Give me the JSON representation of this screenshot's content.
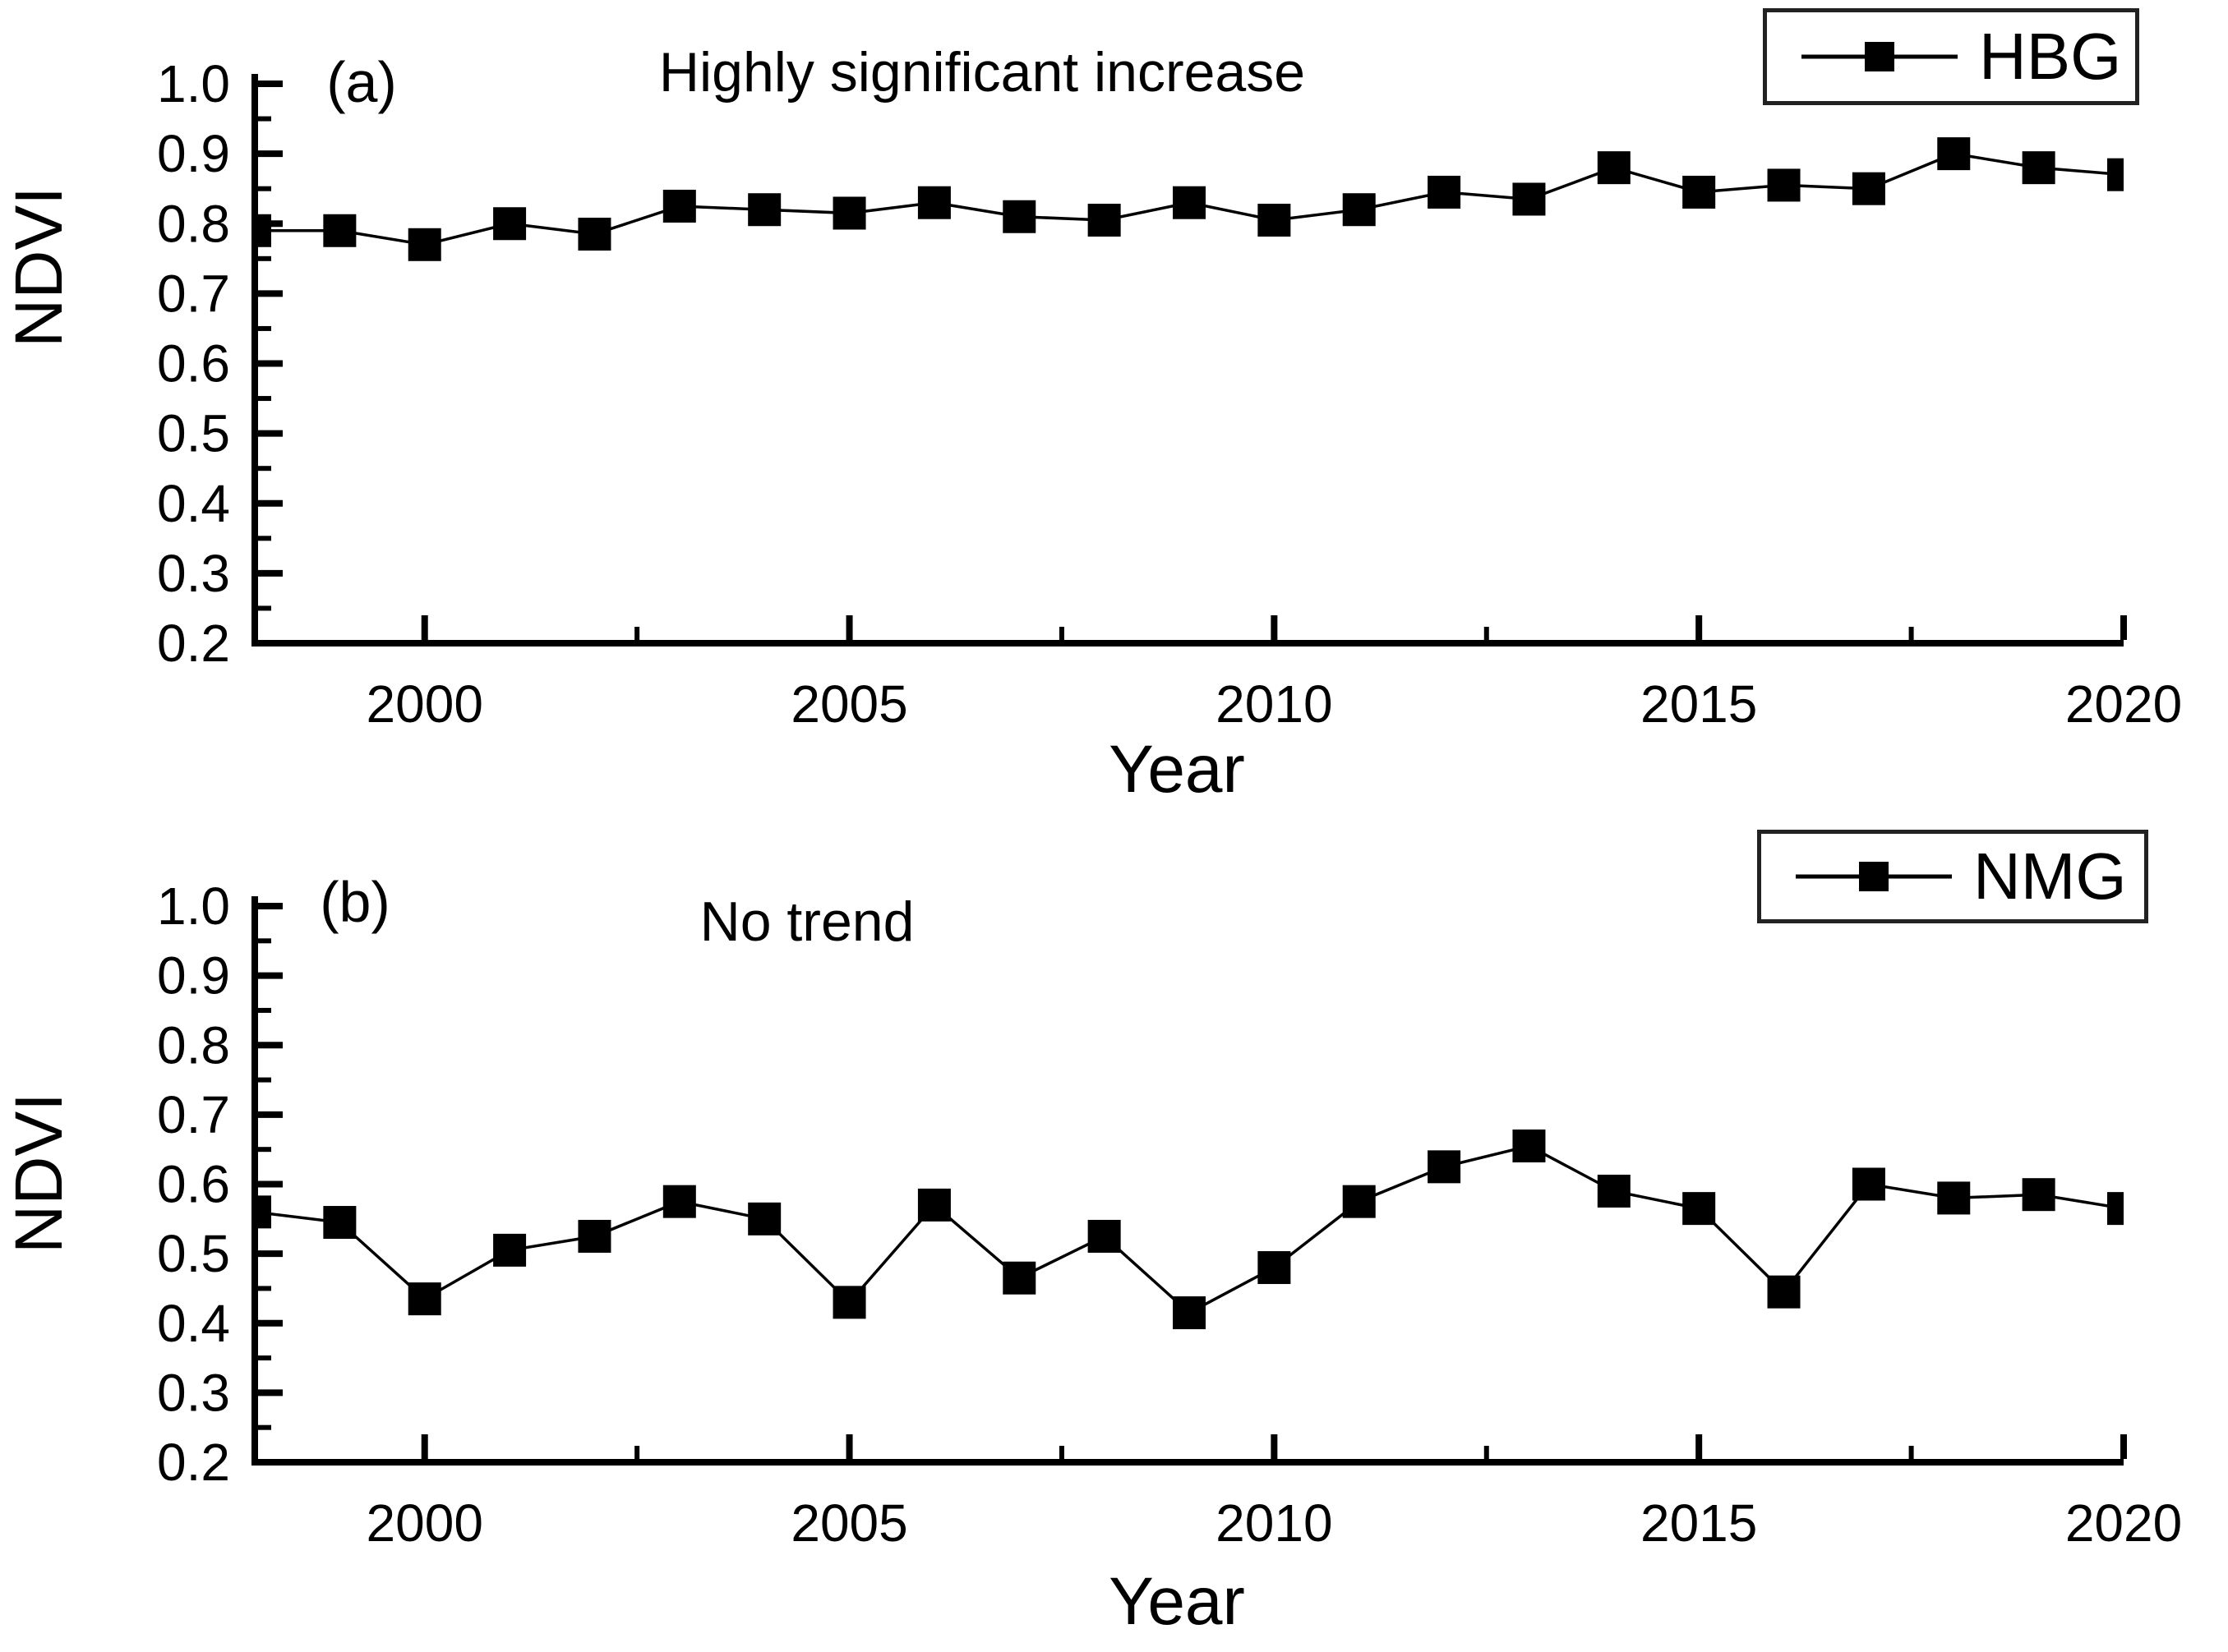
{
  "figure": {
    "background": "#ffffff",
    "series_color": "#000000",
    "axis_color": "#000000"
  },
  "chart_data": [
    {
      "type": "line",
      "panel_label": "(a)",
      "title": "Highly significant increase",
      "legend_label": "HBG",
      "xlabel": "Year",
      "ylabel": "NDVI",
      "marker": "filled-square",
      "grid": false,
      "legend_position": "top-right",
      "xlim": [
        1998,
        2020
      ],
      "ylim": [
        0.2,
        1.0
      ],
      "xticks": [
        2000,
        2005,
        2010,
        2015,
        2020
      ],
      "xticks_minor": [
        2002.5,
        2007.5,
        2012.5,
        2017.5
      ],
      "yticks": [
        0.2,
        0.3,
        0.4,
        0.5,
        0.6,
        0.7,
        0.8,
        0.9,
        1.0
      ],
      "yticks_minor": [
        0.25,
        0.35,
        0.45,
        0.55,
        0.65,
        0.75,
        0.85,
        0.95
      ],
      "x": [
        1998,
        1999,
        2000,
        2001,
        2002,
        2003,
        2004,
        2005,
        2006,
        2007,
        2008,
        2009,
        2010,
        2011,
        2012,
        2013,
        2014,
        2015,
        2016,
        2017,
        2018,
        2019,
        2020
      ],
      "series": [
        {
          "name": "HBG",
          "values": [
            0.79,
            0.79,
            0.77,
            0.8,
            0.785,
            0.825,
            0.82,
            0.815,
            0.83,
            0.81,
            0.805,
            0.83,
            0.805,
            0.82,
            0.845,
            0.835,
            0.88,
            0.845,
            0.855,
            0.85,
            0.9,
            0.88,
            0.87
          ]
        }
      ]
    },
    {
      "type": "line",
      "panel_label": "(b)",
      "title": "No trend",
      "legend_label": "NMG",
      "xlabel": "Year",
      "ylabel": "NDVI",
      "marker": "filled-square",
      "grid": false,
      "legend_position": "top-right",
      "xlim": [
        1998,
        2020
      ],
      "ylim": [
        0.2,
        1.0
      ],
      "xticks": [
        2000,
        2005,
        2010,
        2015,
        2020
      ],
      "xticks_minor": [
        2002.5,
        2007.5,
        2012.5,
        2017.5
      ],
      "yticks": [
        0.2,
        0.3,
        0.4,
        0.5,
        0.6,
        0.7,
        0.8,
        0.9,
        1.0
      ],
      "yticks_minor": [
        0.25,
        0.35,
        0.45,
        0.55,
        0.65,
        0.75,
        0.85,
        0.95
      ],
      "x": [
        1998,
        1999,
        2000,
        2001,
        2002,
        2003,
        2004,
        2005,
        2006,
        2007,
        2008,
        2009,
        2010,
        2011,
        2012,
        2013,
        2014,
        2015,
        2016,
        2017,
        2018,
        2019,
        2020
      ],
      "series": [
        {
          "name": "NMG",
          "values": [
            0.56,
            0.545,
            0.435,
            0.505,
            0.525,
            0.575,
            0.55,
            0.43,
            0.57,
            0.465,
            0.525,
            0.415,
            0.48,
            0.575,
            0.625,
            0.655,
            0.59,
            0.565,
            0.445,
            0.6,
            0.58,
            0.585,
            0.565
          ]
        }
      ]
    }
  ]
}
